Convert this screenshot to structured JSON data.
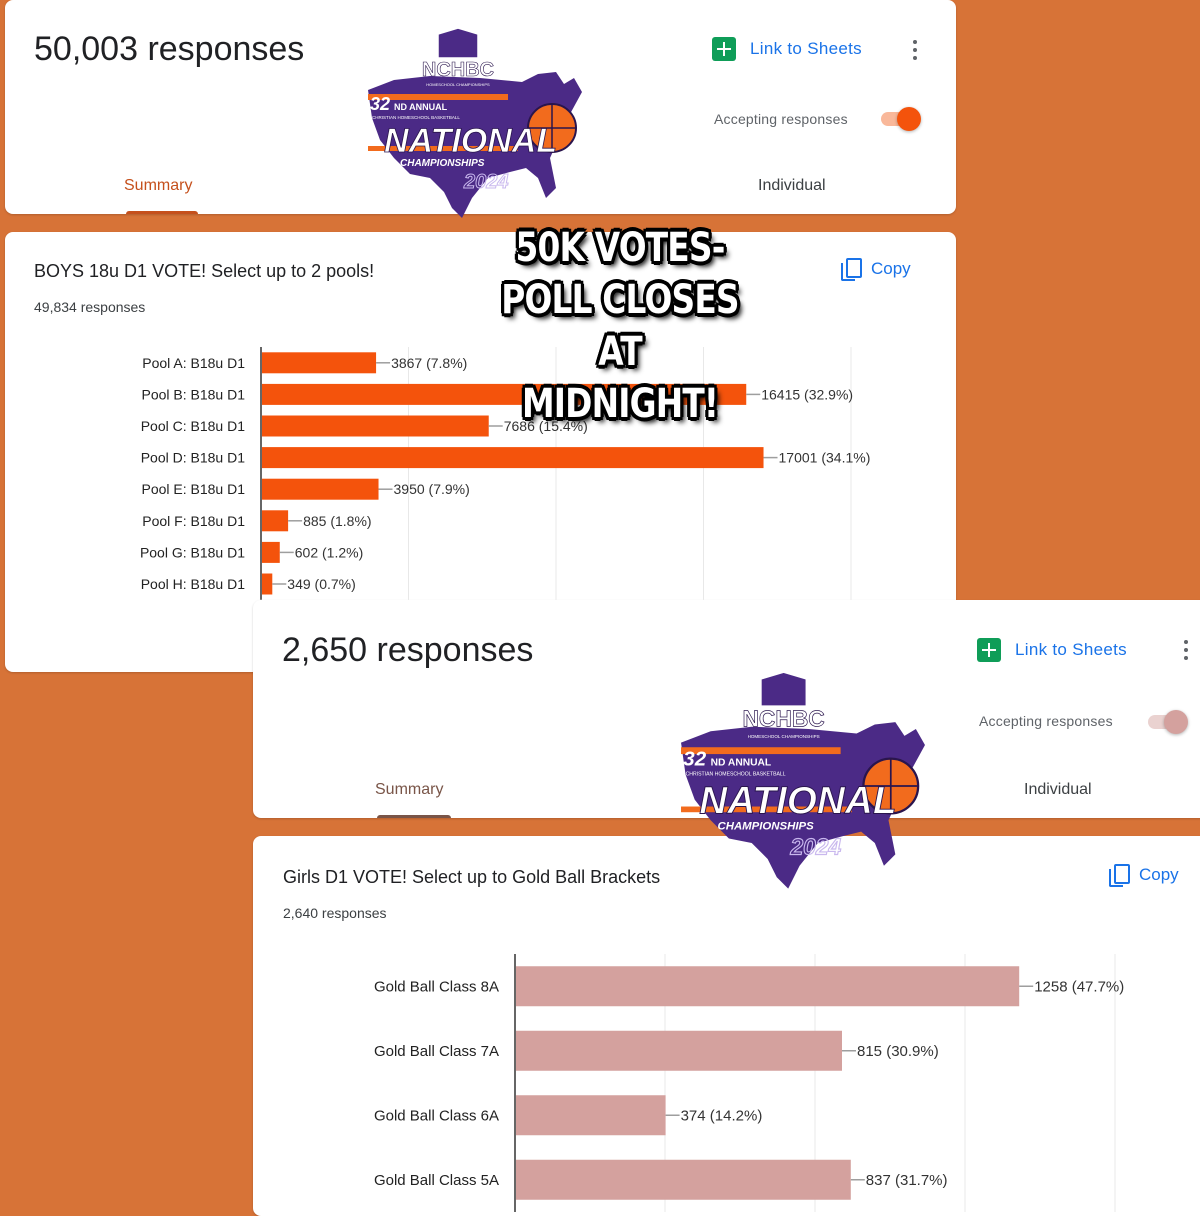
{
  "poll1": {
    "header": {
      "response_count": "50,003 responses",
      "link_to_sheets": "Link to Sheets",
      "accepting_label": "Accepting responses",
      "accepting": true,
      "tabs": [
        "Summary",
        "Individual"
      ]
    },
    "question": {
      "title": "BOYS 18u D1 VOTE! Select up to 2 pools!",
      "responses": "49,834 responses",
      "copy_label": "Copy"
    }
  },
  "poll2": {
    "header": {
      "response_count": "2,650 responses",
      "link_to_sheets": "Link to Sheets",
      "accepting_label": "Accepting responses",
      "accepting": false,
      "tabs": [
        "Summary",
        "Individual"
      ]
    },
    "question": {
      "title": "Girls D1 VOTE! Select up to Gold Ball Brackets",
      "responses": "2,640 responses",
      "copy_label": "Copy"
    }
  },
  "overlay": {
    "lines": [
      "50K VOTES-",
      "POLL CLOSES AT",
      "MIDNIGHT!"
    ]
  },
  "logo": {
    "name": "NCHBC",
    "tagline": "HOMESCHOOL CHAMPIONSHIPS",
    "ordinal": "32",
    "ordinal_suffix": "ND ANNUAL",
    "subtitle": "CHRISTIAN HOMESCHOOL BASKETBALL",
    "main": "NATIONAL",
    "championships": "CHAMPIONSHIPS",
    "year": "2024"
  },
  "colors": {
    "background": "#d77337",
    "tab_active_1": "#c5501c",
    "tab_active_2": "#795548",
    "bar_1": "#f4530c",
    "bar_2": "#d4a19e",
    "toggle_on": "#f4530c",
    "toggle_off": "#d4a19e",
    "link": "#1a73e8",
    "sheets_green": "#0f9d58",
    "logo_purple": "#4b2a86",
    "logo_orange": "#f26b1d"
  },
  "icons": [
    "sheets-icon",
    "more-vert-icon",
    "copy-icon",
    "basketball-icon"
  ],
  "chart_data": [
    {
      "type": "bar",
      "orientation": "horizontal",
      "title": "BOYS 18u D1 VOTE! Select up to 2 pools!",
      "categories": [
        "Pool A: B18u D1",
        "Pool B: B18u D1",
        "Pool C: B18u D1",
        "Pool D: B18u D1",
        "Pool E: B18u D1",
        "Pool F: B18u D1",
        "Pool G: B18u D1",
        "Pool H: B18u D1"
      ],
      "values": [
        3867,
        16415,
        7686,
        17001,
        3950,
        885,
        602,
        349
      ],
      "labels": [
        "3867 (7.8%)",
        "16415 (32.9%)",
        "7686 (15.4%)",
        "17001 (34.1%)",
        "3950 (7.9%)",
        "885 (1.8%)",
        "602 (1.2%)",
        "349 (0.7%)"
      ],
      "xlim": [
        0,
        20000
      ],
      "grid": true
    },
    {
      "type": "bar",
      "orientation": "horizontal",
      "title": "Girls D1 VOTE! Select up to Gold Ball Brackets",
      "categories": [
        "Gold Ball Class 8A",
        "Gold Ball Class 7A",
        "Gold Ball Class 6A",
        "Gold Ball Class 5A"
      ],
      "values": [
        1258,
        815,
        374,
        837
      ],
      "labels": [
        "1258 (47.7%)",
        "815 (30.9%)",
        "374 (14.2%)",
        "837 (31.7%)"
      ],
      "xlim": [
        0,
        1500
      ],
      "grid": true
    }
  ]
}
